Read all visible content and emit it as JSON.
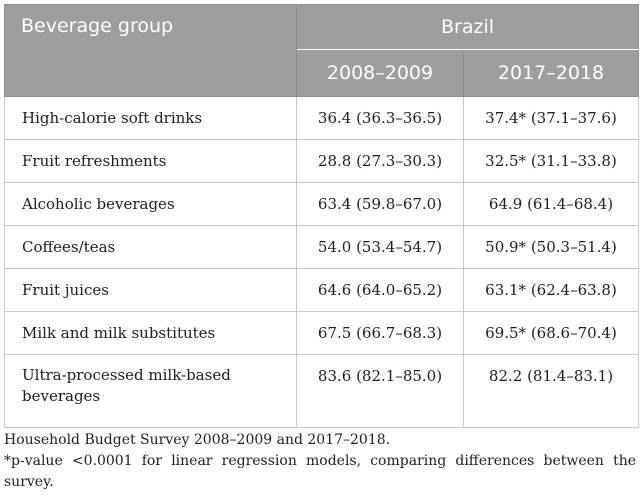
{
  "table": {
    "header": {
      "group_label": "Beverage group",
      "country": "Brazil",
      "years": [
        "2008–2009",
        "2017–2018"
      ]
    },
    "rows": [
      {
        "group": "High-calorie soft drinks",
        "v2008": "36.4 (36.3–36.5)",
        "v2017": "37.4* (37.1–37.6)"
      },
      {
        "group": "Fruit refreshments",
        "v2008": "28.8 (27.3–30.3)",
        "v2017": "32.5* (31.1–33.8)"
      },
      {
        "group": "Alcoholic beverages",
        "v2008": "63.4 (59.8–67.0)",
        "v2017": "64.9 (61.4–68.4)"
      },
      {
        "group": "Coffees/teas",
        "v2008": "54.0 (53.4–54.7)",
        "v2017": "50.9* (50.3–51.4)"
      },
      {
        "group": "Fruit juices",
        "v2008": "64.6 (64.0–65.2)",
        "v2017": "63.1* (62.4–63.8)"
      },
      {
        "group": "Milk and milk substitutes",
        "v2008": "67.5 (66.7–68.3)",
        "v2017": "69.5* (68.6–70.4)"
      },
      {
        "group": "Ultra-processed milk-based beverages",
        "v2008": "83.6 (82.1–85.0)",
        "v2017": "82.2 (81.4–83.1)"
      }
    ]
  },
  "notes": {
    "survey": "Household Budget Survey 2008–2009 and 2017–2018.",
    "footnote": "*p-value <0.0001 for linear regression models, comparing differences between the survey."
  }
}
